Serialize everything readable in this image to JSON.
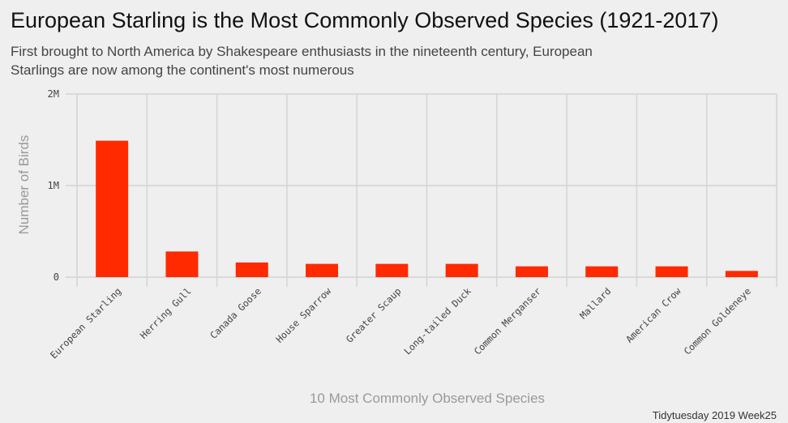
{
  "title": "European Starling is the Most Commonly Observed Species (1921-2017)",
  "subtitle": "First brought to North America by Shakespeare enthusiasts in the nineteenth century, European Starlings are now among the continent's most numerous",
  "caption": "Tidytuesday 2019 Week25",
  "colors": {
    "bar": "#ff2a00",
    "grid": "#d4d4d4",
    "background": "#efefef"
  },
  "chart_data": {
    "type": "bar",
    "title": "European Starling is the Most Commonly Observed Species (1921-2017)",
    "xlabel": "10 Most Commonly Observed Species",
    "ylabel": "Number of Birds",
    "categories": [
      "European Starling",
      "Herring Gull",
      "Canada Goose",
      "House Sparrow",
      "Greater Scaup",
      "Long-tailed Duck",
      "Common Merganser",
      "Mallard",
      "American Crow",
      "Common Goldeneye"
    ],
    "values": [
      1490000,
      280000,
      160000,
      145000,
      145000,
      145000,
      118000,
      118000,
      118000,
      68000
    ],
    "yticks": [
      0,
      1000000,
      2000000
    ],
    "ytick_labels": [
      "0",
      "1M",
      "2M"
    ],
    "ylim": [
      0,
      2000000
    ],
    "grid": true,
    "legend": "none"
  }
}
